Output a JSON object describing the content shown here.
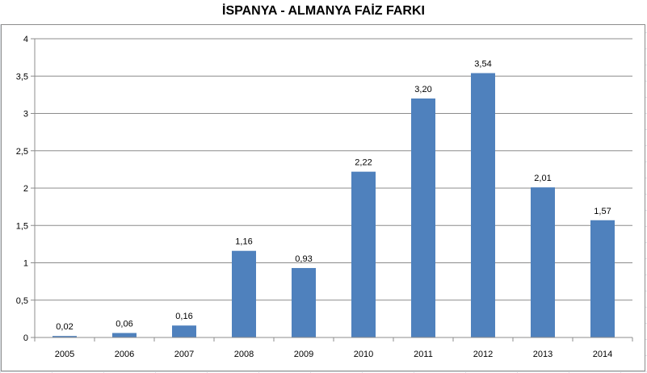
{
  "chart_data": {
    "type": "bar",
    "title": "İSPANYA - ALMANYA FAİZ FARKI",
    "categories": [
      "2005",
      "2006",
      "2007",
      "2008",
      "2009",
      "2010",
      "2011",
      "2012",
      "2013",
      "2014"
    ],
    "values": [
      0.02,
      0.06,
      0.16,
      1.16,
      0.93,
      2.22,
      3.2,
      3.54,
      2.01,
      1.57
    ],
    "data_labels": [
      "0,02",
      "0,06",
      "0,16",
      "1,16",
      "0,93",
      "2,22",
      "3,20",
      "3,54",
      "2,01",
      "1,57"
    ],
    "y_ticks": [
      0,
      0.5,
      1,
      1.5,
      2,
      2.5,
      3,
      3.5,
      4
    ],
    "y_tick_labels": [
      "0",
      "0,5",
      "1",
      "1,5",
      "2",
      "2,5",
      "3",
      "3,5",
      "4"
    ],
    "ylim": [
      0,
      4
    ],
    "grid": true,
    "legend": "none",
    "bar_color": "#4f81bd"
  }
}
